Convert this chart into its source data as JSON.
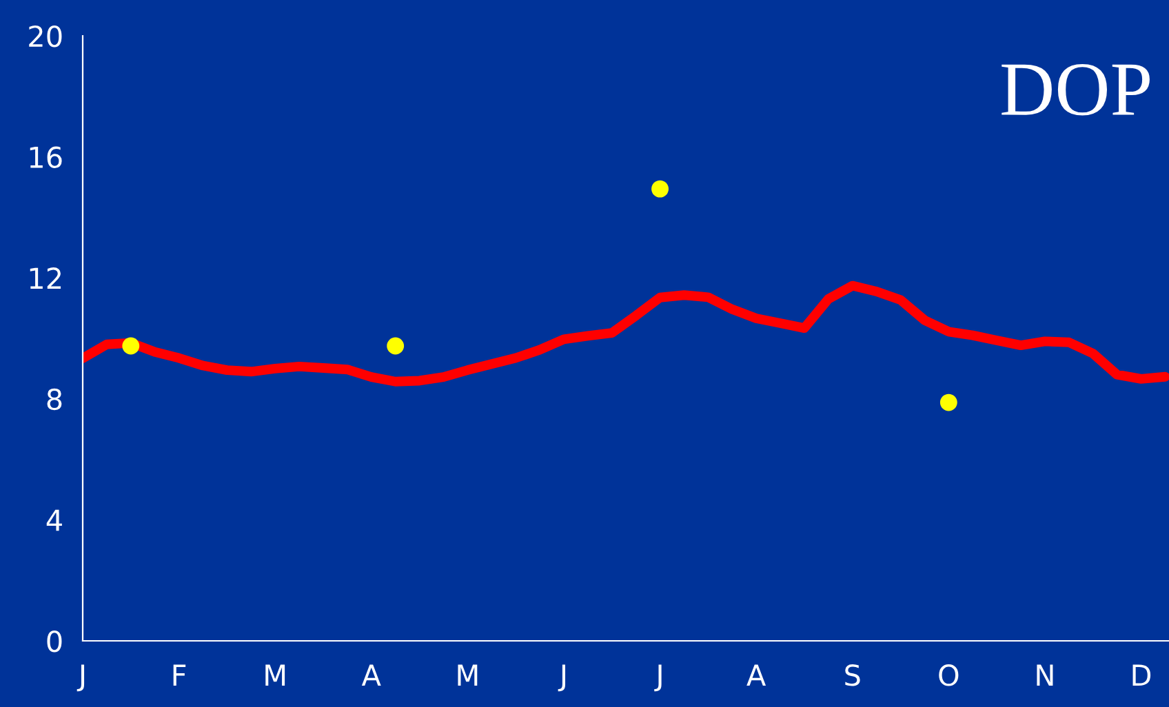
{
  "chart_data": {
    "type": "line",
    "title": "DOP",
    "categories": [
      "J",
      null,
      null,
      null,
      "F",
      null,
      null,
      null,
      "M",
      null,
      null,
      null,
      "A",
      null,
      null,
      null,
      "M",
      null,
      null,
      null,
      "J",
      null,
      null,
      null,
      "J",
      null,
      null,
      null,
      "A",
      null,
      null,
      null,
      "S",
      null,
      null,
      null,
      "O",
      null,
      null,
      null,
      "N",
      null,
      null,
      null,
      "D",
      null
    ],
    "ylim": [
      0,
      20
    ],
    "yticks": [
      0,
      4,
      8,
      12,
      16,
      20
    ],
    "grid": false,
    "legend": false,
    "series": [
      {
        "color": "#ff0000",
        "values": [
          9.34,
          9.8,
          9.85,
          9.55,
          9.35,
          9.1,
          8.95,
          8.9,
          9.0,
          9.07,
          9.02,
          8.97,
          8.72,
          8.57,
          8.6,
          8.72,
          8.95,
          9.15,
          9.35,
          9.62,
          9.97,
          10.08,
          10.18,
          10.75,
          11.35,
          11.43,
          11.36,
          10.96,
          10.66,
          10.5,
          10.34,
          11.3,
          11.74,
          11.55,
          11.27,
          10.6,
          10.22,
          10.1,
          9.93,
          9.77,
          9.9,
          9.87,
          9.5,
          8.8,
          8.66,
          8.73
        ]
      },
      {
        "type": "scatter",
        "color": "#ffff00",
        "values": [
          null,
          null,
          9.75,
          null,
          null,
          null,
          null,
          null,
          null,
          null,
          null,
          null,
          null,
          9.75,
          null,
          null,
          null,
          null,
          null,
          null,
          null,
          null,
          null,
          null,
          14.94,
          null,
          null,
          null,
          null,
          null,
          null,
          null,
          null,
          null,
          null,
          null,
          7.88,
          null,
          null,
          null,
          null,
          null,
          null,
          null,
          null,
          null
        ]
      }
    ]
  }
}
